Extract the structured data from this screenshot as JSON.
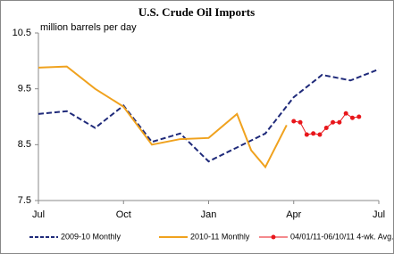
{
  "chart_data": {
    "type": "line",
    "title": "U.S. Crude Oil Imports",
    "subtitle": "million barrels per day",
    "xlim": [
      0,
      12
    ],
    "xticks": [
      {
        "value": 0,
        "label": "Jul"
      },
      {
        "value": 3,
        "label": "Oct"
      },
      {
        "value": 6,
        "label": "Jan"
      },
      {
        "value": 9,
        "label": "Apr"
      },
      {
        "value": 12,
        "label": "Jul"
      }
    ],
    "ylim": [
      7.5,
      10.5
    ],
    "yticks": [
      7.5,
      8.5,
      9.5,
      10.5
    ],
    "series": [
      {
        "name": "2009-10 Monthly",
        "color": "#1f2a7a",
        "style": "dashed",
        "x": [
          0,
          1,
          2,
          3,
          4,
          5,
          6,
          7,
          8,
          9,
          10,
          11,
          12
        ],
        "values": [
          9.05,
          9.1,
          8.8,
          9.2,
          8.55,
          8.7,
          8.2,
          8.45,
          8.7,
          9.35,
          9.75,
          9.65,
          9.85
        ]
      },
      {
        "name": "2010-11 Monthly",
        "color": "#f0a21e",
        "style": "solid",
        "x": [
          0,
          1,
          2,
          3,
          4,
          5,
          6,
          7,
          7.5,
          8,
          8.75
        ],
        "values": [
          9.88,
          9.9,
          9.5,
          9.18,
          8.5,
          8.6,
          8.62,
          9.05,
          8.4,
          8.1,
          8.85
        ]
      },
      {
        "name": "04/01/11-06/10/11 4-wk. Avg.",
        "color": "#e8161b",
        "style": "markers",
        "x": [
          9,
          9.23,
          9.46,
          9.69,
          9.92,
          10.15,
          10.38,
          10.61,
          10.84,
          11.07,
          11.3
        ],
        "values": [
          8.92,
          8.9,
          8.68,
          8.7,
          8.68,
          8.8,
          8.9,
          8.9,
          9.06,
          8.98,
          9.0
        ]
      }
    ]
  }
}
